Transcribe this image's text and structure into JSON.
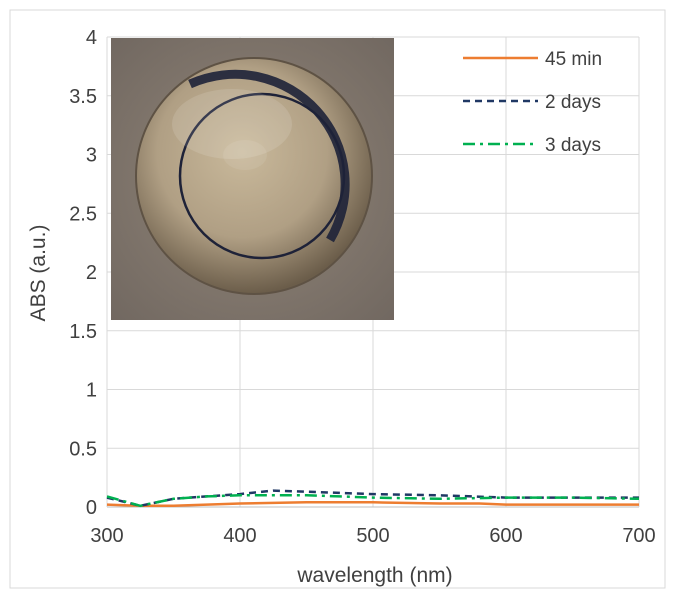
{
  "chart_data": {
    "type": "line",
    "title": "",
    "xlabel": "wavelength (nm)",
    "ylabel": "ABS (a.u.)",
    "xlim": [
      300,
      700
    ],
    "ylim": [
      0,
      4
    ],
    "x_ticks": [
      "300",
      "400",
      "500",
      "600",
      "700"
    ],
    "y_ticks": [
      "0",
      "0.5",
      "1",
      "1.5",
      "2",
      "2.5",
      "3",
      "3.5",
      "4"
    ],
    "grid": true,
    "legend_position": "top-right",
    "series": [
      {
        "name": "45 min",
        "color": "#ED7D31",
        "style": "solid",
        "x": [
          300,
          325,
          350,
          400,
          450,
          500,
          550,
          580,
          600,
          650,
          700
        ],
        "y": [
          0.02,
          0.01,
          0.01,
          0.03,
          0.04,
          0.04,
          0.03,
          0.03,
          0.02,
          0.02,
          0.02
        ]
      },
      {
        "name": "2 days",
        "color": "#203864",
        "style": "dashed",
        "x": [
          300,
          325,
          350,
          375,
          400,
          425,
          450,
          475,
          500,
          550,
          600,
          650,
          700
        ],
        "y": [
          0.08,
          0.01,
          0.07,
          0.09,
          0.11,
          0.14,
          0.13,
          0.12,
          0.11,
          0.1,
          0.08,
          0.08,
          0.08
        ]
      },
      {
        "name": "3 days",
        "color": "#00B050",
        "style": "dashdot",
        "x": [
          300,
          325,
          350,
          375,
          400,
          425,
          450,
          475,
          500,
          550,
          600,
          650,
          700
        ],
        "y": [
          0.09,
          0.01,
          0.07,
          0.09,
          0.1,
          0.1,
          0.1,
          0.09,
          0.08,
          0.07,
          0.08,
          0.08,
          0.07
        ]
      }
    ]
  },
  "inset_photo": {
    "icon": "cuvette-top-view-photo",
    "background_color": "#8a7f76",
    "liquid_color": "#b6a68c",
    "ring_color": "#1e2238"
  }
}
